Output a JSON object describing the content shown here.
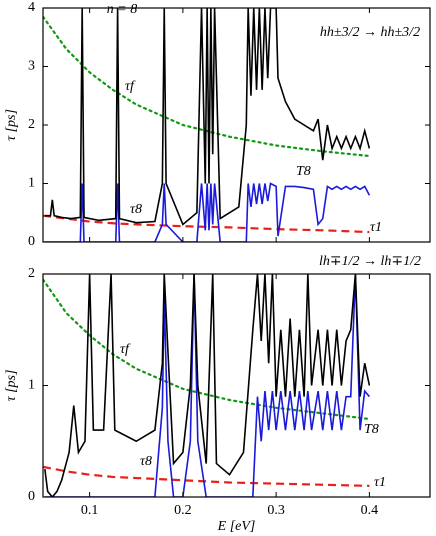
{
  "chart_data": [
    {
      "type": "line",
      "title": "n = 8",
      "annotation": "hh±3/2 → hh±3/2",
      "ylabel": "τ [ps]",
      "xlim": [
        0.05,
        0.465
      ],
      "ylim": [
        0,
        4
      ],
      "xticks": [
        0.1,
        0.2,
        0.3,
        0.4
      ],
      "yticks": [
        0,
        1,
        2,
        3,
        4
      ],
      "x": [
        0.052,
        0.058,
        0.06,
        0.062,
        0.07,
        0.08,
        0.09,
        0.092,
        0.094,
        0.11,
        0.128,
        0.13,
        0.132,
        0.15,
        0.17,
        0.178,
        0.18,
        0.182,
        0.2,
        0.215,
        0.22,
        0.224,
        0.226,
        0.228,
        0.23,
        0.232,
        0.234,
        0.24,
        0.26,
        0.268,
        0.27,
        0.273,
        0.276,
        0.279,
        0.282,
        0.285,
        0.288,
        0.291,
        0.294,
        0.3,
        0.302,
        0.31,
        0.32,
        0.33,
        0.34,
        0.345,
        0.35,
        0.355,
        0.36,
        0.365,
        0.37,
        0.375,
        0.38,
        0.385,
        0.39,
        0.395,
        0.4
      ],
      "series": [
        {
          "name": "τf",
          "color": "#119911",
          "style": "dotted",
          "x": [
            0.05,
            0.075,
            0.1,
            0.125,
            0.15,
            0.2,
            0.25,
            0.3,
            0.35,
            0.4
          ],
          "values": [
            3.85,
            3.3,
            2.9,
            2.6,
            2.35,
            2.0,
            1.8,
            1.65,
            1.55,
            1.47
          ]
        },
        {
          "name": "τ1",
          "color": "#e8201a",
          "style": "dashed",
          "x": [
            0.05,
            0.075,
            0.1,
            0.125,
            0.15,
            0.2,
            0.25,
            0.3,
            0.35,
            0.4
          ],
          "values": [
            0.45,
            0.4,
            0.35,
            0.32,
            0.3,
            0.27,
            0.25,
            0.22,
            0.2,
            0.17
          ]
        },
        {
          "name": "T8",
          "color": "#1a1adc",
          "style": "solid",
          "values": [
            0,
            0,
            0,
            0,
            0,
            0,
            0,
            1,
            0,
            0,
            0,
            1,
            0,
            0,
            0,
            0.3,
            1,
            0.3,
            0,
            0,
            1,
            0.2,
            1,
            0.2,
            1,
            0.3,
            1,
            0,
            0,
            0,
            1,
            0.6,
            1,
            0.65,
            1,
            0.65,
            1,
            0.7,
            1,
            0.95,
            0.1,
            0.95,
            0.95,
            0.93,
            0.9,
            0.3,
            0.4,
            0.95,
            0.9,
            0.95,
            0.9,
            0.95,
            0.9,
            0.95,
            0.9,
            0.95,
            0.8
          ]
        },
        {
          "name": "τ8",
          "color": "#000000",
          "style": "solid",
          "values": [
            0.45,
            0.45,
            0.72,
            0.45,
            0.42,
            0.4,
            0.42,
            4,
            0.42,
            0.37,
            0.4,
            4,
            0.4,
            0.33,
            0.35,
            1,
            4,
            1,
            0.3,
            0.5,
            4,
            1,
            4,
            1,
            4,
            1.5,
            4,
            0.4,
            0.6,
            2,
            4,
            2.5,
            4,
            2.6,
            4,
            2.6,
            4,
            2.8,
            4,
            4,
            2.8,
            2.4,
            2.1,
            2,
            1.9,
            2.1,
            1.4,
            2,
            1.6,
            1.8,
            1.6,
            1.8,
            1.6,
            1.8,
            1.6,
            1.9,
            1.6
          ]
        }
      ]
    },
    {
      "type": "line",
      "annotation": "lh∓1/2 → lh∓1/2",
      "ylabel": "τ [ps]",
      "xlabel": "E [eV]",
      "xlim": [
        0.05,
        0.465
      ],
      "ylim": [
        0,
        2
      ],
      "xticks": [
        0.1,
        0.2,
        0.3,
        0.4
      ],
      "yticks": [
        0,
        1,
        2
      ],
      "x": [
        0.052,
        0.055,
        0.06,
        0.065,
        0.07,
        0.078,
        0.083,
        0.088,
        0.095,
        0.1,
        0.104,
        0.115,
        0.123,
        0.127,
        0.15,
        0.17,
        0.178,
        0.18,
        0.184,
        0.19,
        0.2,
        0.208,
        0.212,
        0.216,
        0.225,
        0.232,
        0.236,
        0.25,
        0.265,
        0.275,
        0.28,
        0.284,
        0.288,
        0.292,
        0.296,
        0.3,
        0.305,
        0.31,
        0.315,
        0.32,
        0.325,
        0.33,
        0.334,
        0.338,
        0.345,
        0.35,
        0.355,
        0.36,
        0.365,
        0.37,
        0.375,
        0.38,
        0.385,
        0.39,
        0.395,
        0.4
      ],
      "series": [
        {
          "name": "τf",
          "color": "#119911",
          "style": "dotted",
          "x": [
            0.05,
            0.075,
            0.1,
            0.125,
            0.15,
            0.2,
            0.25,
            0.3,
            0.35,
            0.4
          ],
          "values": [
            1.95,
            1.65,
            1.45,
            1.28,
            1.15,
            0.97,
            0.87,
            0.8,
            0.75,
            0.7
          ]
        },
        {
          "name": "τ1",
          "color": "#e8201a",
          "style": "dashed",
          "x": [
            0.05,
            0.075,
            0.1,
            0.125,
            0.15,
            0.2,
            0.25,
            0.3,
            0.35,
            0.4
          ],
          "values": [
            0.27,
            0.23,
            0.2,
            0.18,
            0.17,
            0.15,
            0.13,
            0.12,
            0.11,
            0.1
          ]
        },
        {
          "name": "T8",
          "color": "#1a1adc",
          "style": "solid",
          "values": [
            0,
            0,
            0,
            0,
            0,
            0,
            0,
            0,
            0,
            0,
            0,
            0,
            0,
            0,
            0,
            0,
            0.8,
            1.8,
            0.5,
            0,
            0,
            0.5,
            2,
            0.5,
            0,
            0,
            0,
            0,
            0,
            0,
            0.9,
            0.5,
            0.95,
            0.6,
            0.95,
            0.6,
            0.95,
            0.6,
            0.95,
            0.6,
            0.95,
            0.6,
            0.95,
            0.6,
            0.95,
            0.6,
            0.95,
            0.6,
            0.95,
            0.6,
            0.9,
            0.9,
            2,
            0.6,
            0.95,
            0.9
          ]
        },
        {
          "name": "τ8",
          "color": "#000000",
          "style": "solid",
          "values": [
            0.25,
            0.05,
            0,
            0.05,
            0.15,
            0.4,
            0.82,
            0.4,
            0.5,
            2,
            0.6,
            0.6,
            2,
            0.6,
            0.5,
            0.6,
            1.2,
            2,
            1.3,
            0.3,
            0.4,
            1,
            2,
            1,
            0.3,
            2,
            0.3,
            0.2,
            0.4,
            1.5,
            2,
            1.4,
            2,
            1.2,
            2,
            0.9,
            1.5,
            0.9,
            1.6,
            0.9,
            1.5,
            0.9,
            2,
            1.0,
            1.5,
            1.0,
            1.5,
            1.0,
            1.5,
            1.0,
            1.4,
            1.5,
            2,
            0.9,
            1.2,
            1.0
          ]
        }
      ]
    }
  ]
}
